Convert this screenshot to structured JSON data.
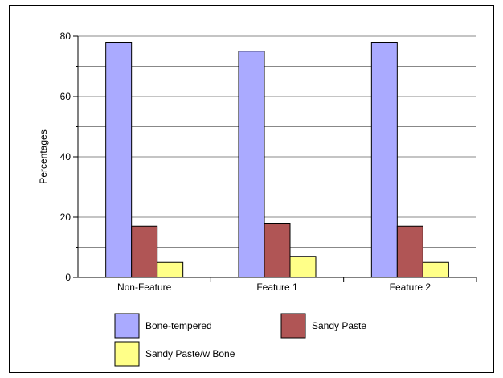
{
  "chart_data": {
    "type": "bar",
    "title": "",
    "xlabel": "",
    "ylabel": "Percentages",
    "ylim": [
      0,
      80
    ],
    "yticks": [
      0,
      20,
      40,
      60,
      80
    ],
    "grid": true,
    "legend_position": "bottom",
    "categories": [
      "Non-Feature",
      "Feature 1",
      "Feature 2"
    ],
    "series": [
      {
        "name": "Bone-tempered",
        "color": "#aaaaff",
        "values": [
          78,
          75,
          78
        ]
      },
      {
        "name": "Sandy Paste",
        "color": "#b05555",
        "values": [
          17,
          18,
          17
        ]
      },
      {
        "name": "Sandy Paste/w Bone",
        "color": "#ffff88",
        "values": [
          5,
          7,
          5
        ]
      }
    ]
  }
}
